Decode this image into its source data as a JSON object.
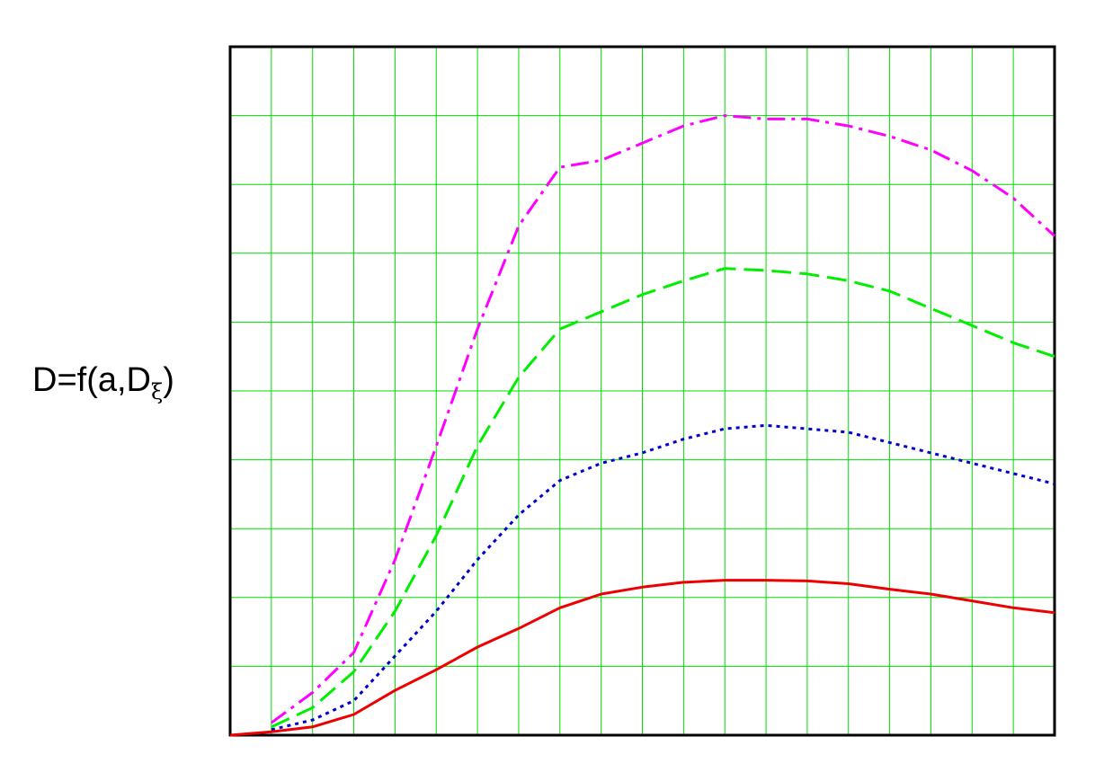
{
  "chart_data": {
    "type": "line",
    "title": "",
    "xlabel": "",
    "ylabel": {
      "main": "D=f(a,D",
      "subscript": "ξ",
      "close": ")"
    },
    "xlim": [
      0,
      20
    ],
    "ylim": [
      0,
      10
    ],
    "x_divisions": 20,
    "y_divisions": 10,
    "grid": true,
    "grid_color": "#00dd00",
    "legend": "none",
    "series": [
      {
        "color": "#ff00ff",
        "style": "dash-dot",
        "x": [
          1,
          2,
          3,
          4,
          5,
          6,
          7,
          8,
          9,
          10,
          11,
          12,
          13,
          14,
          15,
          16,
          17,
          18,
          19,
          20
        ],
        "y": [
          0.18,
          0.62,
          1.2,
          2.55,
          4.2,
          5.9,
          7.4,
          8.25,
          8.35,
          8.6,
          8.85,
          9.0,
          8.95,
          8.95,
          8.85,
          8.7,
          8.5,
          8.2,
          7.8,
          7.25
        ]
      },
      {
        "color": "#00ee00",
        "style": "dashed",
        "x": [
          1,
          2,
          3,
          4,
          5,
          6,
          7,
          8,
          9,
          10,
          11,
          12,
          13,
          14,
          15,
          16,
          17,
          18,
          19,
          20
        ],
        "y": [
          0.12,
          0.4,
          0.92,
          1.8,
          2.9,
          4.2,
          5.2,
          5.9,
          6.15,
          6.4,
          6.6,
          6.78,
          6.75,
          6.7,
          6.6,
          6.45,
          6.2,
          5.95,
          5.7,
          5.5
        ]
      },
      {
        "color": "#0000cc",
        "style": "dotted",
        "x": [
          1,
          2,
          3,
          4,
          5,
          6,
          7,
          8,
          9,
          10,
          11,
          12,
          13,
          14,
          15,
          16,
          17,
          18,
          19,
          20
        ],
        "y": [
          0.08,
          0.22,
          0.5,
          1.15,
          1.8,
          2.55,
          3.2,
          3.7,
          3.95,
          4.1,
          4.3,
          4.45,
          4.5,
          4.45,
          4.4,
          4.25,
          4.1,
          3.95,
          3.8,
          3.65
        ]
      },
      {
        "color": "#ee0000",
        "style": "solid",
        "x": [
          0,
          1,
          2,
          3,
          4,
          5,
          6,
          7,
          8,
          9,
          10,
          11,
          12,
          13,
          14,
          15,
          16,
          17,
          18,
          19,
          20
        ],
        "y": [
          0.0,
          0.05,
          0.12,
          0.3,
          0.65,
          0.95,
          1.28,
          1.55,
          1.85,
          2.05,
          2.15,
          2.22,
          2.25,
          2.25,
          2.24,
          2.2,
          2.12,
          2.05,
          1.95,
          1.85,
          1.78
        ]
      }
    ]
  }
}
